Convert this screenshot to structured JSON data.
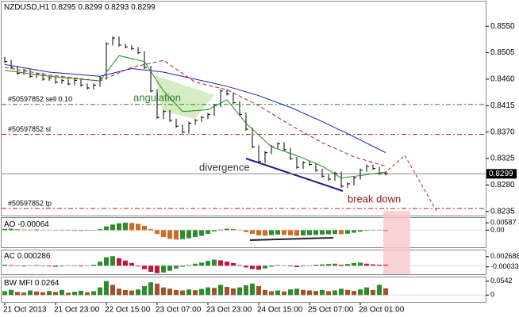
{
  "header": {
    "symbol": "NZDUSD,H1"
  },
  "chart_data": {
    "type": "ohlc",
    "ohlc": [
      0.8295,
      0.8299,
      0.8293,
      0.8299
    ],
    "categories": [
      "21 Oct 2013",
      null,
      null,
      null,
      null,
      null,
      null,
      null,
      "21 Oct 23:00",
      null,
      null,
      null,
      null,
      null,
      null,
      null,
      "22 Oct 15:00",
      null,
      null,
      null,
      null,
      null,
      null,
      null,
      "23 Oct 07:00",
      null,
      null,
      null,
      null,
      null,
      null,
      null,
      "23 Oct 23:00",
      null,
      null,
      null,
      null,
      null,
      null,
      null,
      "24 Oct 15:00",
      null,
      null,
      null,
      null,
      null,
      null,
      null,
      "25 Oct 07:00",
      null,
      null,
      null,
      null,
      null,
      null,
      null,
      "28 Oct 01:00",
      null,
      null,
      null,
      null
    ],
    "close": [
      0.849,
      0.848,
      0.847,
      0.8475,
      0.8465,
      0.8468,
      0.846,
      0.8462,
      0.8455,
      0.8458,
      0.8452,
      0.8458,
      0.845,
      0.8445,
      0.845,
      0.8462,
      0.852,
      0.853,
      0.8518,
      0.8515,
      0.8512,
      0.8505,
      0.848,
      0.844,
      0.8395,
      0.8405,
      0.839,
      0.838,
      0.837,
      0.8385,
      0.839,
      0.8395,
      0.84,
      0.8415,
      0.844,
      0.8435,
      0.842,
      0.84,
      0.8375,
      0.8345,
      0.832,
      0.8335,
      0.8345,
      0.835,
      0.834,
      0.8325,
      0.831,
      0.8318,
      0.8315,
      0.8305,
      0.8295,
      0.829,
      0.83,
      0.8278,
      0.8282,
      0.8292,
      0.8305,
      0.8312,
      0.8308,
      0.83,
      0.8299
    ],
    "color": "#000000",
    "ylim": [
      0.8228,
      0.8592
    ],
    "yticks": [
      {
        "value": 0.855,
        "label": "0.8550"
      },
      0.8505,
      {
        "value": 0.846,
        "label": "0.8460"
      },
      0.8415,
      {
        "value": 0.837,
        "label": "0.8370"
      },
      0.8325,
      {
        "value": 0.828,
        "label": "0.8280"
      },
      0.8235
    ],
    "current_price": 0.8299,
    "series": [
      {
        "color": "#1f1fb0",
        "dash": false,
        "x": [
          0,
          7,
          15,
          20,
          25,
          30,
          35,
          40,
          45,
          50,
          55,
          60
        ],
        "values": [
          0.8485,
          0.8472,
          0.8465,
          0.8478,
          0.8472,
          0.846,
          0.8448,
          0.8432,
          0.8412,
          0.8388,
          0.8362,
          0.8335
        ]
      },
      {
        "color": "#b22222",
        "dash": true,
        "x": [
          0,
          7,
          15,
          20,
          25,
          30,
          35,
          40,
          45,
          50,
          55,
          60
        ],
        "values": [
          0.848,
          0.8467,
          0.8457,
          0.848,
          0.8492,
          0.8455,
          0.8442,
          0.8415,
          0.8382,
          0.8352,
          0.8328,
          0.8312
        ]
      },
      {
        "color": "#1a8a1a",
        "dash": false,
        "x": [
          0,
          7,
          15,
          18,
          22,
          25,
          28,
          32,
          35,
          38,
          42,
          46,
          50,
          53,
          56,
          60
        ],
        "values": [
          0.8475,
          0.8465,
          0.8457,
          0.85,
          0.849,
          0.844,
          0.8405,
          0.8408,
          0.8425,
          0.8385,
          0.8345,
          0.833,
          0.8312,
          0.8292,
          0.8296,
          0.8302
        ]
      }
    ],
    "levels": [
      {
        "label": "#50597852 sell 0.10",
        "value": 0.8417,
        "color": "#1a8a1a"
      },
      {
        "label": "#50597852 sl",
        "value": 0.8366,
        "color": "#b22222"
      },
      {
        "label": "#50597852 tp",
        "value": 0.824,
        "color": "#b22222"
      }
    ],
    "annotations": [
      "angulation",
      "divergence",
      "break down"
    ],
    "ao": {
      "name": "AO",
      "current": -0.00064,
      "up_color": "#2e8b2e",
      "down_color": "#d2691e",
      "ylim": [
        -0.0137,
        0.0098
      ],
      "yticks": [
        0.00587,
        {
          "value": 0,
          "label": "0.00"
        }
      ],
      "values": [
        0.001,
        0.0012,
        0.0008,
        0.0005,
        0.0004,
        0.0006,
        0.0003,
        0.0001,
        -0.0002,
        -0.0004,
        -0.0003,
        -0.0005,
        -0.0006,
        -0.0004,
        -0.0002,
        0.0008,
        0.003,
        0.0045,
        0.0055,
        0.006,
        0.0058,
        0.005,
        0.0035,
        0.001,
        -0.003,
        -0.0055,
        -0.007,
        -0.0075,
        -0.0072,
        -0.0065,
        -0.0055,
        -0.0045,
        -0.003,
        -0.001,
        0.0005,
        0.0012,
        0.001,
        0.0002,
        -0.0015,
        -0.003,
        -0.0042,
        -0.0045,
        -0.004,
        -0.0035,
        -0.0038,
        -0.0042,
        -0.0045,
        -0.0042,
        -0.004,
        -0.0038,
        -0.0035,
        -0.0033,
        -0.003,
        -0.0032,
        -0.0028,
        -0.002,
        -0.0012,
        -0.0005,
        -0.0002,
        0.0001,
        -0.00064
      ]
    },
    "ac": {
      "name": "AC",
      "current": 0.000286,
      "up_color": "#2e8b2e",
      "down_color": "#c8143c",
      "ylim": [
        -0.0025,
        0.0045
      ],
      "yticks": [
        0.002688,
        -0.000333
      ],
      "values": [
        0.0003,
        0.0002,
        -0.0001,
        -0.0002,
        0.0001,
        0.0002,
        -0.0001,
        -0.0002,
        -0.0003,
        -0.0002,
        0.0001,
        -0.0001,
        -0.0002,
        0.0001,
        0.0003,
        0.0012,
        0.0025,
        0.0028,
        0.0022,
        0.0015,
        0.0008,
        -0.0002,
        -0.001,
        -0.0018,
        -0.0022,
        -0.002,
        -0.0015,
        -0.0008,
        -0.0003,
        0.0002,
        0.0006,
        0.0009,
        0.0014,
        0.0018,
        0.0016,
        0.0012,
        0.0008,
        0.0002,
        -0.0005,
        -0.001,
        -0.0012,
        -0.0008,
        -0.0003,
        0.0002,
        0.0001,
        -0.0002,
        -0.0004,
        -0.0002,
        0.0001,
        0.0003,
        0.0004,
        0.0005,
        0.0006,
        0.0003,
        0.0005,
        0.0008,
        0.0009,
        0.0006,
        0.0004,
        0.0003,
        0.000286
      ]
    },
    "mfi": {
      "name": "BW MFI",
      "current": 0.0264,
      "up_color": "#2e8b2e",
      "down_color": "#a0522d",
      "ylim": [
        -0.027,
        0.0693
      ],
      "yticks": [
        0.0542,
        0
      ],
      "values": [
        0.015,
        0.02,
        0.012,
        0.01,
        0.018,
        0.014,
        0.011,
        0.016,
        0.012,
        0.02,
        0.009,
        0.013,
        0.017,
        0.011,
        0.015,
        0.03,
        0.055,
        0.04,
        0.025,
        0.02,
        0.018,
        0.022,
        0.035,
        0.05,
        0.045,
        0.03,
        0.025,
        0.02,
        0.018,
        0.022,
        0.019,
        0.024,
        0.03,
        0.028,
        0.04,
        0.032,
        0.026,
        0.03,
        0.038,
        0.045,
        0.035,
        0.02,
        0.015,
        0.018,
        0.014,
        0.022,
        0.025,
        0.02,
        0.018,
        0.016,
        0.02,
        0.015,
        0.018,
        0.025,
        0.02,
        0.016,
        0.022,
        0.03,
        0.02,
        0.04,
        0.0264
      ]
    }
  }
}
